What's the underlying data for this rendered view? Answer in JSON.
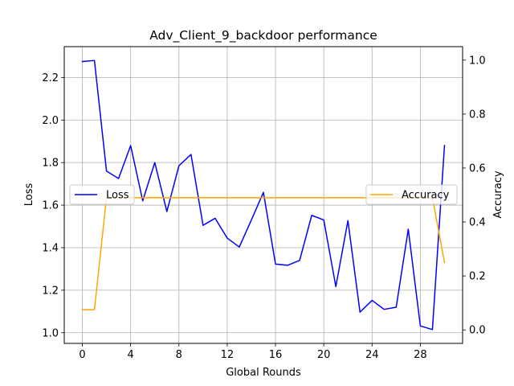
{
  "chart_data": {
    "type": "line",
    "title": "Adv_Client_9_backdoor performance",
    "xlabel": "Global Rounds",
    "ylabel_left": "Loss",
    "ylabel_right": "Accuracy",
    "x": [
      0,
      1,
      2,
      3,
      4,
      5,
      6,
      7,
      8,
      9,
      10,
      11,
      12,
      13,
      14,
      15,
      16,
      17,
      18,
      19,
      20,
      21,
      22,
      23,
      24,
      25,
      26,
      27,
      28,
      29,
      30
    ],
    "xticks": [
      "0",
      "4",
      "8",
      "12",
      "16",
      "20",
      "24",
      "28"
    ],
    "xlim": [
      -1.5,
      31.5
    ],
    "left_axis": {
      "ylim": [
        0.95,
        2.345
      ],
      "ticks": [
        "1.0",
        "1.2",
        "1.4",
        "1.6",
        "1.8",
        "2.0",
        "2.2"
      ]
    },
    "right_axis": {
      "ylim": [
        -0.05,
        1.05
      ],
      "ticks": [
        "0.0",
        "0.2",
        "0.4",
        "0.6",
        "0.8",
        "1.0"
      ]
    },
    "series": [
      {
        "name": "Loss",
        "axis": "left",
        "color": "#0000ff",
        "values": [
          2.275,
          2.28,
          1.76,
          1.725,
          1.88,
          1.62,
          1.8,
          1.57,
          1.785,
          1.838,
          1.505,
          1.538,
          1.445,
          1.403,
          1.53,
          1.66,
          1.323,
          1.317,
          1.34,
          1.552,
          1.53,
          1.217,
          1.527,
          1.097,
          1.152,
          1.11,
          1.12,
          1.487,
          1.032,
          1.015,
          1.88
        ]
      },
      {
        "name": "Accuracy",
        "axis": "right",
        "color": "#ffa500",
        "values": [
          0.075,
          0.075,
          0.49,
          0.49,
          0.49,
          0.49,
          0.49,
          0.49,
          0.49,
          0.49,
          0.49,
          0.49,
          0.49,
          0.49,
          0.49,
          0.49,
          0.49,
          0.49,
          0.49,
          0.49,
          0.49,
          0.49,
          0.49,
          0.49,
          0.49,
          0.49,
          0.49,
          0.49,
          0.49,
          0.49,
          0.25
        ]
      }
    ],
    "grid": true,
    "legends": [
      {
        "entry": "Loss",
        "placement": "center-left"
      },
      {
        "entry": "Accuracy",
        "placement": "center-right"
      }
    ]
  }
}
